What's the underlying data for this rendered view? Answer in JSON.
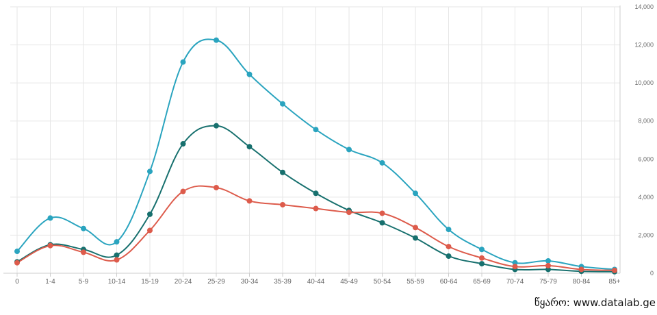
{
  "chart_data": {
    "type": "line",
    "x": [
      "0",
      "1-4",
      "5-9",
      "10-14",
      "15-19",
      "20-24",
      "25-29",
      "30-34",
      "35-39",
      "40-44",
      "45-49",
      "50-54",
      "55-59",
      "60-64",
      "65-69",
      "70-74",
      "75-79",
      "80-84",
      "85+"
    ],
    "yticks": [
      "0",
      "2,000",
      "4,000",
      "6,000",
      "8,000",
      "10,000",
      "12,000",
      "14,000"
    ],
    "ylim": [
      0,
      14000
    ],
    "y_axis_position": "right",
    "grid": true,
    "legend": "none",
    "series": [
      {
        "color": "#2aa4bf",
        "values": [
          1150,
          2900,
          2350,
          1650,
          5350,
          11100,
          12250,
          10450,
          8900,
          7550,
          6500,
          5800,
          4200,
          2300,
          1250,
          550,
          650,
          350,
          200
        ]
      },
      {
        "color": "#17706e",
        "values": [
          600,
          1500,
          1250,
          950,
          3100,
          6800,
          7750,
          6650,
          5300,
          4200,
          3300,
          2650,
          1850,
          900,
          500,
          200,
          200,
          100,
          80
        ]
      },
      {
        "color": "#dd5b4b",
        "values": [
          550,
          1450,
          1100,
          700,
          2250,
          4300,
          4500,
          3800,
          3600,
          3400,
          3200,
          3150,
          2400,
          1400,
          800,
          350,
          400,
          200,
          150
        ]
      }
    ]
  },
  "source": "წყარო: www.datalab.ge"
}
